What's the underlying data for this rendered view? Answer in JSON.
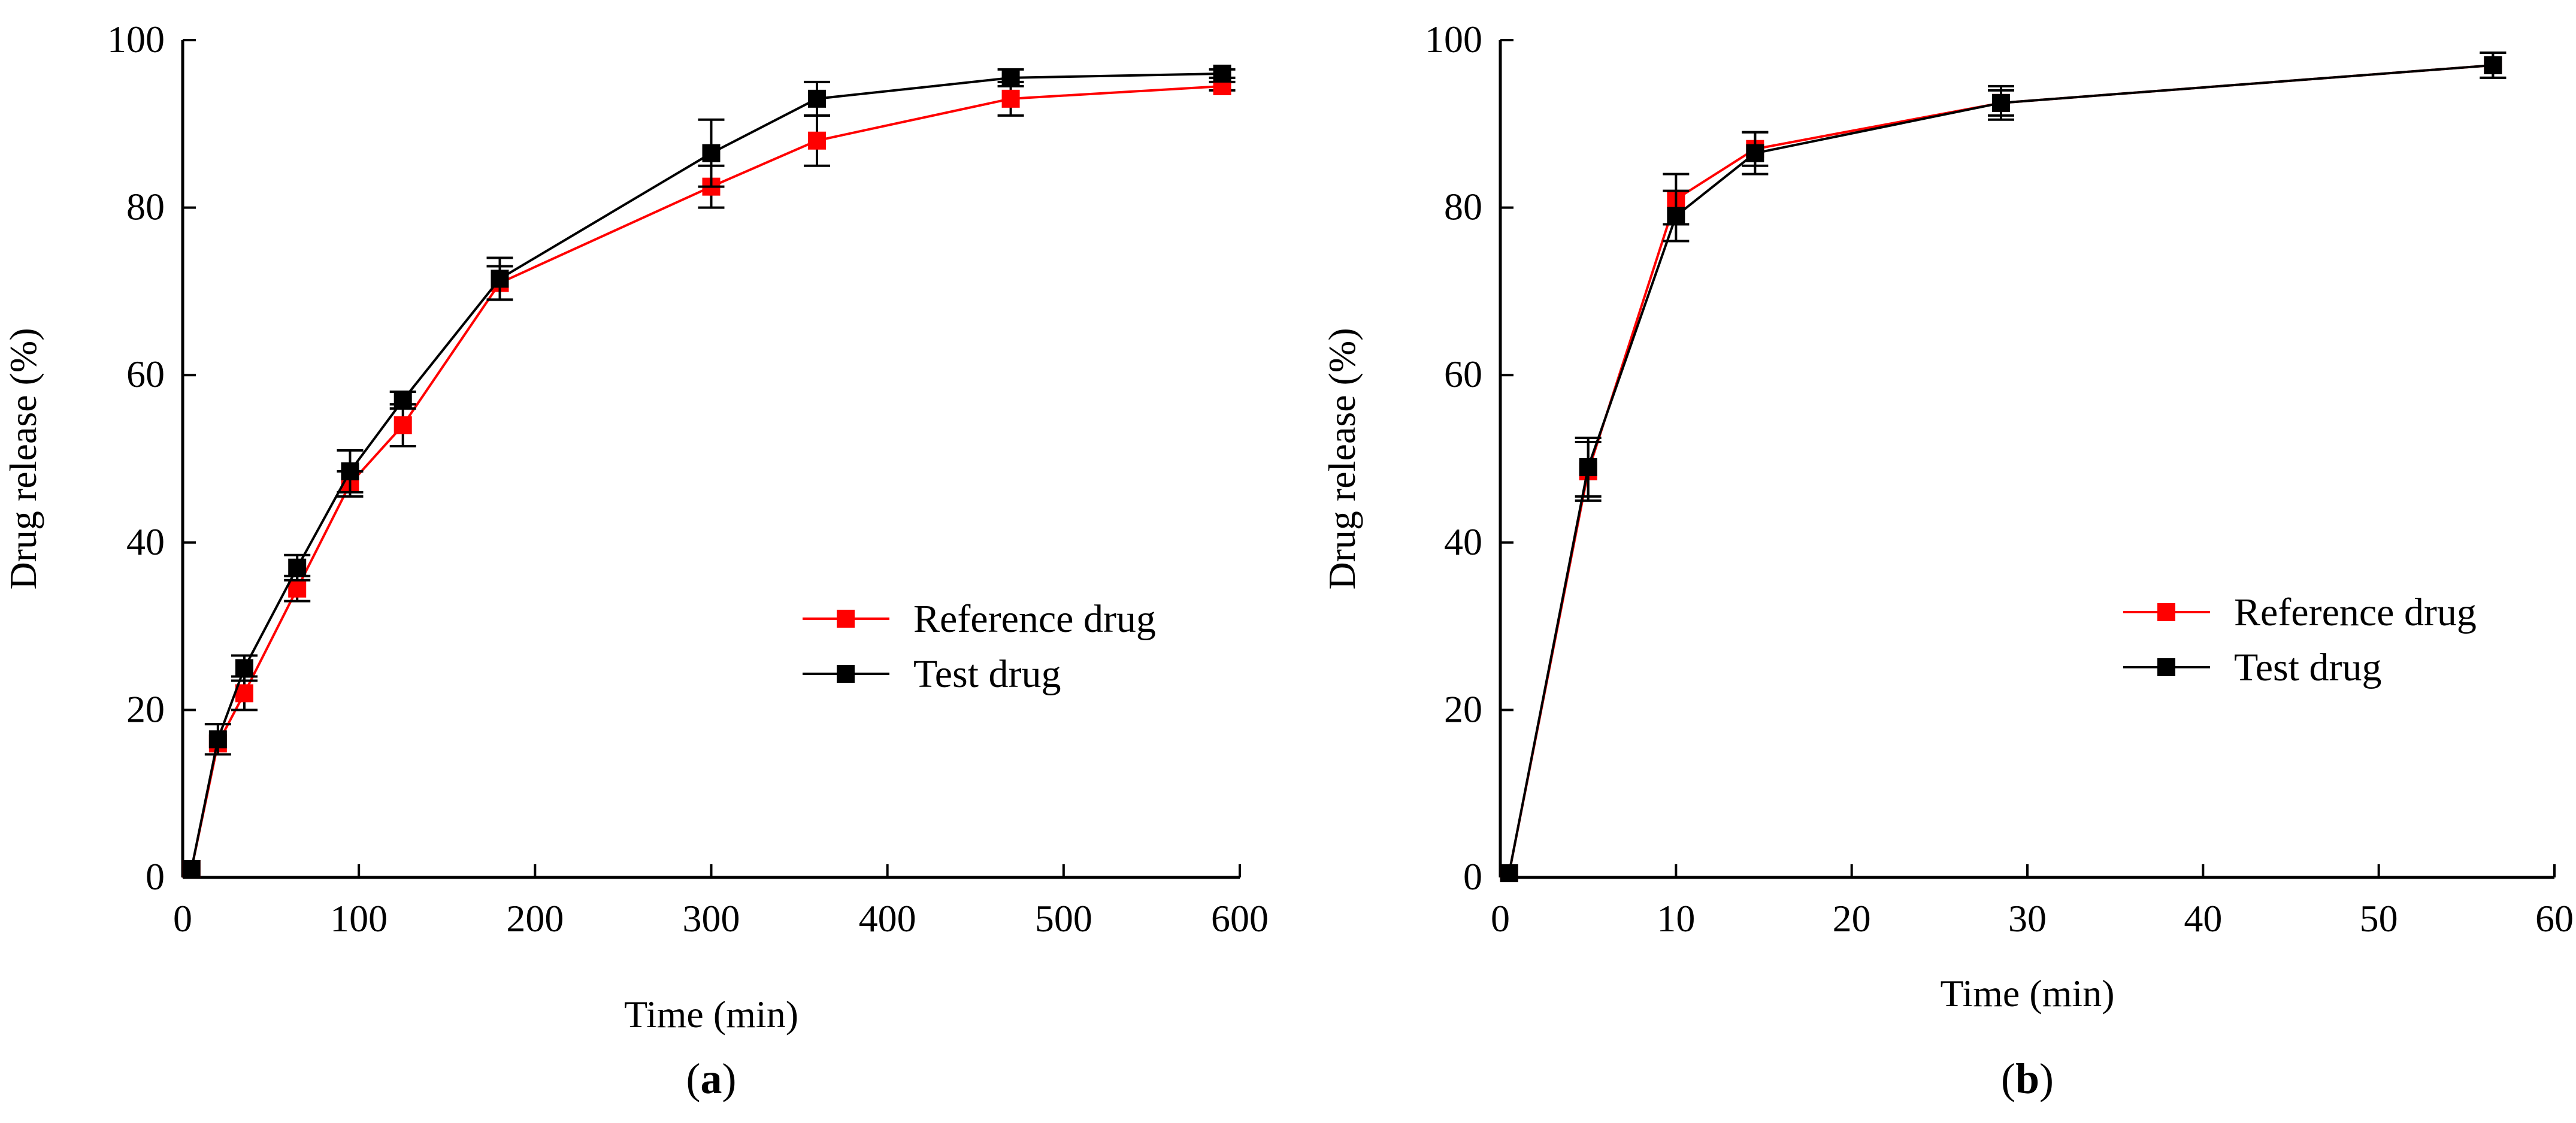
{
  "chart_data": [
    {
      "type": "line",
      "panel_label": "(a)",
      "panel_letter": "a",
      "xlabel": "Time (min)",
      "ylabel": "Drug release (%)",
      "xlim": [
        0,
        600
      ],
      "ylim": [
        0,
        100
      ],
      "xticks": [
        0,
        100,
        200,
        300,
        400,
        500,
        600
      ],
      "yticks": [
        0,
        20,
        40,
        60,
        80,
        100
      ],
      "legend_position": "center-right",
      "series": [
        {
          "name": "Reference drug",
          "color": "#ff0000",
          "marker": "square",
          "x": [
            5,
            20,
            35,
            65,
            95,
            125,
            180,
            300,
            360,
            470,
            590
          ],
          "y": [
            1,
            16,
            22,
            34.5,
            47,
            54,
            71,
            82.5,
            88,
            93,
            94.5
          ],
          "error": [
            0,
            0,
            2,
            1.5,
            1.5,
            2.5,
            2,
            2.5,
            3,
            2,
            0.5
          ]
        },
        {
          "name": "Test drug",
          "color": "#000000",
          "marker": "square",
          "x": [
            5,
            20,
            35,
            65,
            95,
            125,
            180,
            300,
            360,
            470,
            590
          ],
          "y": [
            1,
            16.5,
            25,
            37,
            48.5,
            57,
            71.5,
            86.5,
            93,
            95.5,
            96
          ],
          "error": [
            0,
            1.8,
            1.5,
            1.5,
            2.5,
            1,
            2.5,
            4,
            2,
            1,
            0.5
          ]
        }
      ]
    },
    {
      "type": "line",
      "panel_label": "(b)",
      "panel_letter": "b",
      "xlabel": "Time (min)",
      "ylabel": "Drug release (%)",
      "xlim": [
        0,
        60
      ],
      "ylim": [
        0,
        100
      ],
      "xticks": [
        0,
        10,
        20,
        30,
        40,
        50,
        60
      ],
      "yticks": [
        0,
        20,
        40,
        60,
        80,
        100
      ],
      "legend_position": "center-right",
      "series": [
        {
          "name": "Reference drug",
          "color": "#ff0000",
          "marker": "square",
          "x": [
            0.5,
            5,
            10,
            14.5,
            28.5,
            56.5
          ],
          "y": [
            0.5,
            48.5,
            81,
            87,
            92.5,
            97
          ],
          "error": [
            0,
            3.5,
            3,
            2,
            1.5,
            1.5
          ]
        },
        {
          "name": "Test drug",
          "color": "#000000",
          "marker": "square",
          "x": [
            0.5,
            5,
            10,
            14.5,
            28.5,
            56.5
          ],
          "y": [
            0.5,
            49,
            79,
            86.5,
            92.5,
            97
          ],
          "error": [
            0,
            3.5,
            3,
            2.5,
            2,
            1.5
          ]
        }
      ]
    }
  ]
}
